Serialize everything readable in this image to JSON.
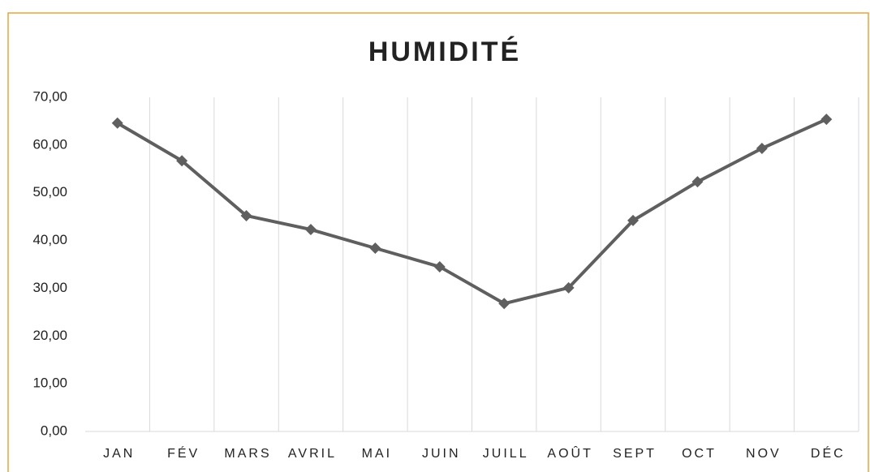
{
  "chart_data": {
    "type": "line",
    "title": "HUMIDITÉ",
    "categories": [
      "JAN",
      "FÉV",
      "MARS",
      "AVRIL",
      "MAI",
      "JUIN",
      "JUILL",
      "AOÛT",
      "SEPT",
      "OCT",
      "NOV",
      "DÉC"
    ],
    "series": [
      {
        "name": "Humidité",
        "color": "#5f5f5f",
        "values": [
          64.6,
          56.7,
          45.2,
          42.3,
          38.4,
          34.5,
          26.8,
          30.1,
          44.2,
          52.3,
          59.3,
          65.4
        ]
      }
    ],
    "ylim": [
      0,
      70
    ],
    "yticks": [
      {
        "value": 0,
        "label": "0,00"
      },
      {
        "value": 10,
        "label": "10,00"
      },
      {
        "value": 20,
        "label": "20,00"
      },
      {
        "value": 30,
        "label": "30,00"
      },
      {
        "value": 40,
        "label": "40,00"
      },
      {
        "value": 50,
        "label": "50,00"
      },
      {
        "value": 60,
        "label": "60,00"
      },
      {
        "value": 70,
        "label": "70,00"
      }
    ],
    "grid": false
  }
}
